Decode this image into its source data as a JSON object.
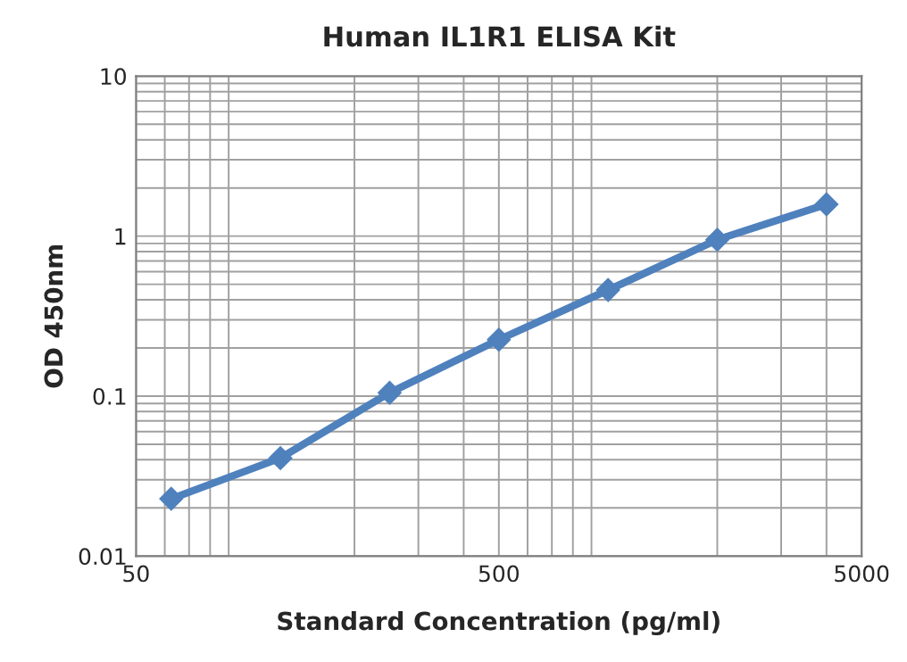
{
  "chart_data": {
    "type": "line",
    "title": "Human IL1R1 ELISA Kit",
    "xlabel": "Standard Concentration (pg/ml)",
    "ylabel": "OD 450nm",
    "x": [
      62.5,
      125,
      250,
      500,
      1000,
      2000,
      4000
    ],
    "series": [
      {
        "color": "#4f81bd",
        "values": [
          0.0228,
          0.041,
          0.105,
          0.225,
          0.46,
          0.95,
          1.58
        ]
      }
    ],
    "log": "xy",
    "xlim": [
      50,
      5000
    ],
    "xticks": [
      50,
      500,
      5000
    ],
    "ylim": [
      0.01,
      10
    ],
    "yticks": [
      0.01,
      0.1,
      1,
      10
    ],
    "grid": true,
    "marker": "diamond",
    "line_style": "solid",
    "legend": false
  }
}
